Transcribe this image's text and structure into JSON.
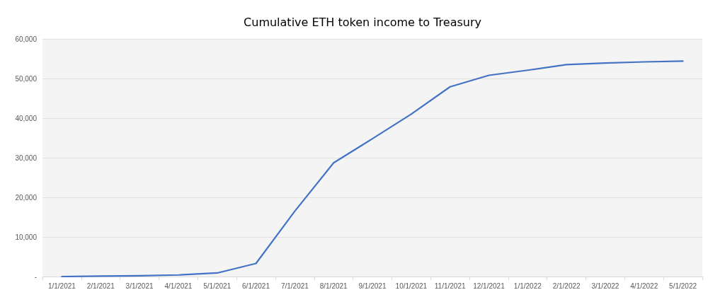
{
  "chart_data": {
    "type": "line",
    "title": "Cumulative ETH token income to Treasury",
    "categories": [
      "1/1/2021",
      "2/1/2021",
      "3/1/2021",
      "4/1/2021",
      "5/1/2021",
      "6/1/2021",
      "7/1/2021",
      "8/1/2021",
      "9/1/2021",
      "10/1/2021",
      "11/1/2021",
      "12/1/2021",
      "1/1/2022",
      "2/1/2022",
      "3/1/2022",
      "4/1/2022",
      "5/1/2022"
    ],
    "series": [
      {
        "color": "#4472c4",
        "values": [
          0,
          100,
          200,
          400,
          900,
          3300,
          16500,
          28700,
          34800,
          41000,
          47900,
          50800,
          52100,
          53500,
          53900,
          54200,
          54400
        ]
      }
    ],
    "ylim": [
      0,
      60000
    ],
    "yticks": [
      {
        "value": 0,
        "label": "-"
      },
      {
        "value": 10000,
        "label": "10,000"
      },
      {
        "value": 20000,
        "label": "20,000"
      },
      {
        "value": 30000,
        "label": "30,000"
      },
      {
        "value": 40000,
        "label": "40,000"
      },
      {
        "value": 50000,
        "label": "50,000"
      },
      {
        "value": 60000,
        "label": "60,000"
      }
    ],
    "grid": "y",
    "marker": "none",
    "line_style": "solid"
  }
}
